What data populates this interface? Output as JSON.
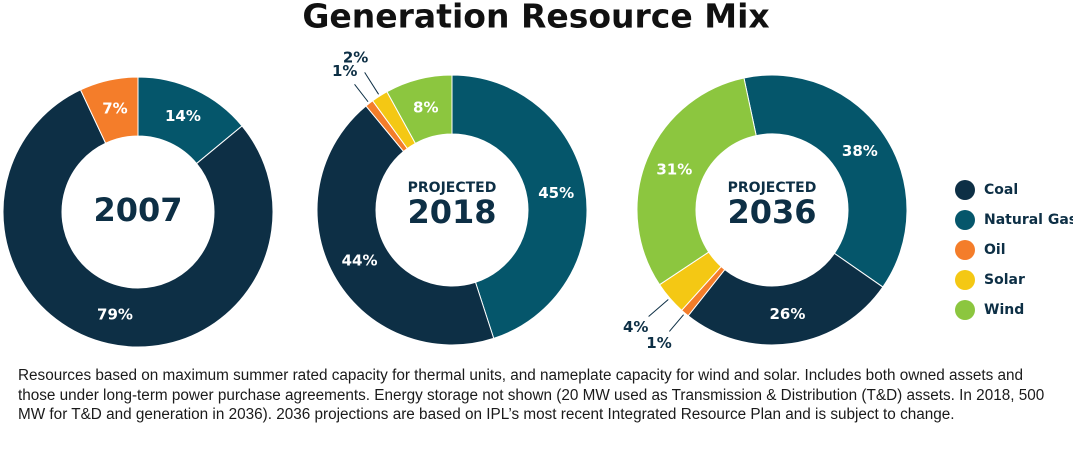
{
  "title": "Generation Resource Mix",
  "footnote": "Resources based on maximum summer rated capacity for thermal units, and nameplate capacity for wind and solar. Includes both owned assets and those under long-term power purchase agreements. Energy storage not shown (20 MW used as Transmission & Distribution (T&D) assets. In 2018, 500 MW for T&D and generation in 2036). 2036 projections are based on IPL’s most recent Integrated Resource Plan and is subject to change.",
  "chart_data": [
    {
      "type": "donut",
      "label": "2007",
      "categories": [
        "Coal",
        "Natural Gas",
        "Oil"
      ],
      "values": [
        79,
        14,
        7
      ],
      "value_labels": [
        "79%",
        "14%",
        "7%"
      ],
      "colors": [
        "#0d2f45",
        "#05566b",
        "#f47d2a"
      ]
    },
    {
      "type": "donut",
      "subtitle": "PROJECTED",
      "label": "2018",
      "categories": [
        "Coal",
        "Natural Gas",
        "Oil",
        "Solar",
        "Wind"
      ],
      "values": [
        44,
        45,
        1,
        2,
        8
      ],
      "value_labels": [
        "44%",
        "45%",
        "1%",
        "2%",
        "8%"
      ],
      "colors": [
        "#0d2f45",
        "#05566b",
        "#f47d2a",
        "#f4c814",
        "#8cc63f"
      ],
      "legend": true
    },
    {
      "type": "donut",
      "subtitle": "PROJECTED",
      "label": "2036",
      "categories": [
        "Coal",
        "Natural Gas",
        "Oil",
        "Solar",
        "Wind"
      ],
      "values": [
        26,
        38,
        1,
        4,
        31
      ],
      "value_labels": [
        "26%",
        "38%",
        "1%",
        "4%",
        "31%"
      ],
      "colors": [
        "#0d2f45",
        "#05566b",
        "#f47d2a",
        "#f4c814",
        "#8cc63f"
      ]
    }
  ]
}
